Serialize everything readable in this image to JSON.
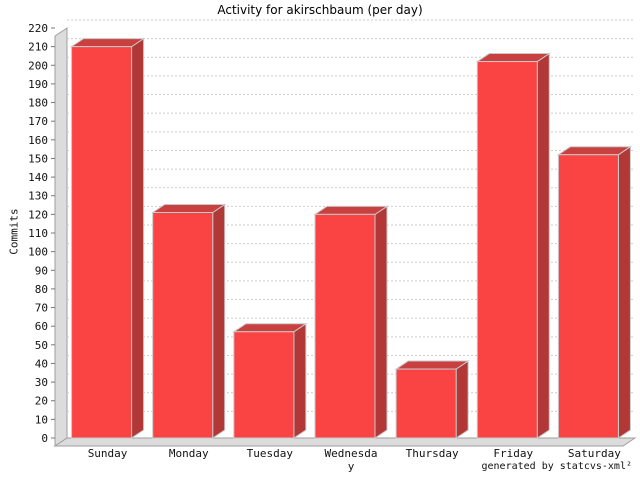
{
  "chart": {
    "title": "Activity for akirschbaum (per day)",
    "y_axis_label": "Commits",
    "footer": "generated by statcvs-xml²"
  },
  "chart_data": {
    "type": "bar",
    "style": "3d",
    "title": "Activity for akirschbaum (per day)",
    "xlabel": "",
    "ylabel": "Commits",
    "ylim": [
      0,
      220
    ],
    "y_tick_step": 10,
    "grid": true,
    "legend": false,
    "categories": [
      "Sunday",
      "Monday",
      "Tuesday",
      "Wednesday",
      "Thursday",
      "Friday",
      "Saturday"
    ],
    "category_label_lines": [
      [
        "Sunday"
      ],
      [
        "Monday"
      ],
      [
        "Tuesday"
      ],
      [
        "Wednesda",
        "y"
      ],
      [
        "Thursday"
      ],
      [
        "Friday"
      ],
      [
        "Saturday"
      ]
    ],
    "values": [
      210,
      121,
      57,
      120,
      37,
      202,
      152
    ],
    "colors": {
      "bar_front": "#FA4444",
      "bar_top": "#C84040",
      "bar_side": "#B23838",
      "bar_outline": "#C8C8C8",
      "gridline": "#CCCCCC",
      "wall": "#DCDCDC",
      "wall_edge": "#9E9E9E",
      "tick_text": "#111111",
      "background": "#FFFFFF"
    }
  }
}
